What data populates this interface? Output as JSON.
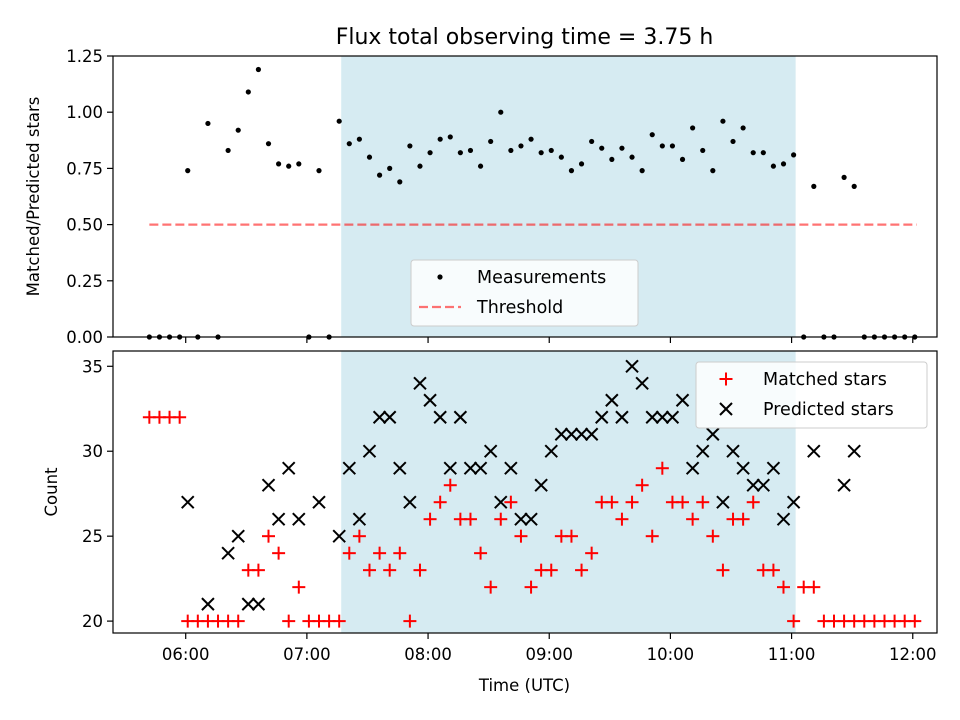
{
  "figure": {
    "title": "Flux total observing time = 3.75 h",
    "xlabel": "Time (UTC)",
    "x_tick_labels": [
      "06:00",
      "07:00",
      "08:00",
      "09:00",
      "10:00",
      "11:00",
      "12:00"
    ]
  },
  "colors": {
    "shade": "#add8e6",
    "measurement": "#000000",
    "threshold": "#ff0000",
    "matched": "#ff0000",
    "predicted": "#000000"
  },
  "chart_data": [
    {
      "type": "scatter",
      "ylabel": "Matched/Predicted stars",
      "xlim": [
        "05:24",
        "12:12"
      ],
      "ylim": [
        0,
        1.25
      ],
      "y_ticks": [
        0,
        0.25,
        0.5,
        0.75,
        1.0,
        1.25
      ],
      "y_tick_labels": [
        "0.00",
        "0.25",
        "0.50",
        "0.75",
        "1.00",
        "1.25"
      ],
      "shaded_region": [
        "07:17",
        "11:02"
      ],
      "legend_position": "lower center",
      "threshold": {
        "name": "Threshold",
        "x": [
          "05:42",
          "12:02"
        ],
        "y": 0.5,
        "style": "dashed"
      },
      "series": [
        {
          "name": "Measurements",
          "marker": "dot",
          "x": [
            "05:42",
            "05:47",
            "05:52",
            "05:57",
            "06:01",
            "06:06",
            "06:11",
            "06:16",
            "06:21",
            "06:26",
            "06:31",
            "06:36",
            "06:41",
            "06:46",
            "06:51",
            "06:56",
            "07:01",
            "07:06",
            "07:11",
            "07:16",
            "07:21",
            "07:26",
            "07:31",
            "07:36",
            "07:41",
            "07:46",
            "07:51",
            "07:56",
            "08:01",
            "08:06",
            "08:11",
            "08:16",
            "08:21",
            "08:26",
            "08:31",
            "08:36",
            "08:41",
            "08:46",
            "08:51",
            "08:56",
            "09:01",
            "09:06",
            "09:11",
            "09:16",
            "09:21",
            "09:26",
            "09:31",
            "09:36",
            "09:41",
            "09:46",
            "09:51",
            "09:56",
            "10:01",
            "10:06",
            "10:11",
            "10:16",
            "10:21",
            "10:26",
            "10:31",
            "10:36",
            "10:41",
            "10:46",
            "10:51",
            "10:56",
            "11:01",
            "11:06",
            "11:11",
            "11:16",
            "11:21",
            "11:26",
            "11:31",
            "11:36",
            "11:41",
            "11:46",
            "11:51",
            "11:56",
            "12:01"
          ],
          "y": [
            0,
            0,
            0,
            0,
            0.74,
            0,
            0.95,
            0,
            0.83,
            0.92,
            1.09,
            1.19,
            0.86,
            0.77,
            0.76,
            0.77,
            0,
            0.74,
            0,
            0.96,
            0.86,
            0.88,
            0.8,
            0.72,
            0.75,
            0.69,
            0.85,
            0.76,
            0.82,
            0.88,
            0.89,
            0.82,
            0.83,
            0.76,
            0.87,
            1.0,
            0.83,
            0.85,
            0.88,
            0.82,
            0.83,
            0.8,
            0.74,
            0.77,
            0.87,
            0.84,
            0.79,
            0.84,
            0.8,
            0.74,
            0.9,
            0.85,
            0.85,
            0.79,
            0.93,
            0.83,
            0.74,
            0.96,
            0.87,
            0.93,
            0.82,
            0.82,
            0.76,
            0.77,
            0.81,
            0,
            0.67,
            0,
            0,
            0.71,
            0.67,
            0,
            0,
            0,
            0,
            0,
            0
          ]
        }
      ]
    },
    {
      "type": "scatter",
      "ylabel": "Count",
      "xlim": [
        "05:24",
        "12:12"
      ],
      "ylim": [
        19.3,
        35.9
      ],
      "y_ticks": [
        20,
        25,
        30,
        35
      ],
      "y_tick_labels": [
        "20",
        "25",
        "30",
        "35"
      ],
      "shaded_region": [
        "07:17",
        "11:02"
      ],
      "legend_position": "upper right",
      "series": [
        {
          "name": "Matched stars",
          "marker": "plus",
          "x": [
            "05:42",
            "05:47",
            "05:52",
            "05:57",
            "06:01",
            "06:06",
            "06:11",
            "06:16",
            "06:21",
            "06:26",
            "06:31",
            "06:36",
            "06:41",
            "06:46",
            "06:51",
            "06:56",
            "07:01",
            "07:06",
            "07:11",
            "07:16",
            "07:21",
            "07:26",
            "07:31",
            "07:36",
            "07:41",
            "07:46",
            "07:51",
            "07:56",
            "08:01",
            "08:06",
            "08:11",
            "08:16",
            "08:21",
            "08:26",
            "08:31",
            "08:36",
            "08:41",
            "08:46",
            "08:51",
            "08:56",
            "09:01",
            "09:06",
            "09:11",
            "09:16",
            "09:21",
            "09:26",
            "09:31",
            "09:36",
            "09:41",
            "09:46",
            "09:51",
            "09:56",
            "10:01",
            "10:06",
            "10:11",
            "10:16",
            "10:21",
            "10:26",
            "10:31",
            "10:36",
            "10:41",
            "10:46",
            "10:51",
            "10:56",
            "11:01",
            "11:06",
            "11:11",
            "11:16",
            "11:21",
            "11:26",
            "11:31",
            "11:36",
            "11:41",
            "11:46",
            "11:51",
            "11:56",
            "12:01"
          ],
          "y": [
            32,
            32,
            32,
            32,
            20,
            20,
            20,
            20,
            20,
            20,
            23,
            23,
            25,
            24,
            20,
            22,
            20,
            20,
            20,
            20,
            24,
            25,
            23,
            24,
            23,
            24,
            20,
            23,
            26,
            27,
            28,
            26,
            26,
            24,
            22,
            26,
            27,
            25,
            22,
            23,
            23,
            25,
            25,
            23,
            24,
            27,
            27,
            26,
            27,
            28,
            25,
            29,
            27,
            27,
            26,
            27,
            25,
            23,
            26,
            26,
            27,
            23,
            23,
            22,
            20,
            22,
            22,
            20,
            20,
            20,
            20,
            20,
            20,
            20,
            20,
            20,
            20
          ]
        },
        {
          "name": "Predicted stars",
          "marker": "x",
          "x": [
            "06:01",
            "06:11",
            "06:21",
            "06:26",
            "06:31",
            "06:36",
            "06:41",
            "06:46",
            "06:51",
            "06:56",
            "07:06",
            "07:16",
            "07:21",
            "07:26",
            "07:31",
            "07:36",
            "07:41",
            "07:46",
            "07:51",
            "07:56",
            "08:01",
            "08:06",
            "08:11",
            "08:16",
            "08:21",
            "08:26",
            "08:31",
            "08:36",
            "08:41",
            "08:46",
            "08:51",
            "08:56",
            "09:01",
            "09:06",
            "09:11",
            "09:16",
            "09:21",
            "09:26",
            "09:31",
            "09:36",
            "09:41",
            "09:46",
            "09:51",
            "09:56",
            "10:01",
            "10:06",
            "10:11",
            "10:16",
            "10:21",
            "10:26",
            "10:31",
            "10:36",
            "10:41",
            "10:46",
            "10:51",
            "10:56",
            "11:01",
            "11:11",
            "11:26",
            "11:31"
          ],
          "y": [
            27,
            21,
            24,
            25,
            21,
            21,
            28,
            26,
            29,
            26,
            27,
            25,
            29,
            26,
            30,
            32,
            32,
            29,
            27,
            34,
            33,
            32,
            29,
            32,
            29,
            29,
            30,
            27,
            29,
            26,
            26,
            28,
            30,
            31,
            31,
            31,
            31,
            32,
            33,
            32,
            35,
            34,
            32,
            32,
            32,
            33,
            29,
            30,
            31,
            27,
            30,
            29,
            28,
            28,
            29,
            26,
            27,
            30,
            28,
            30
          ]
        }
      ]
    }
  ]
}
